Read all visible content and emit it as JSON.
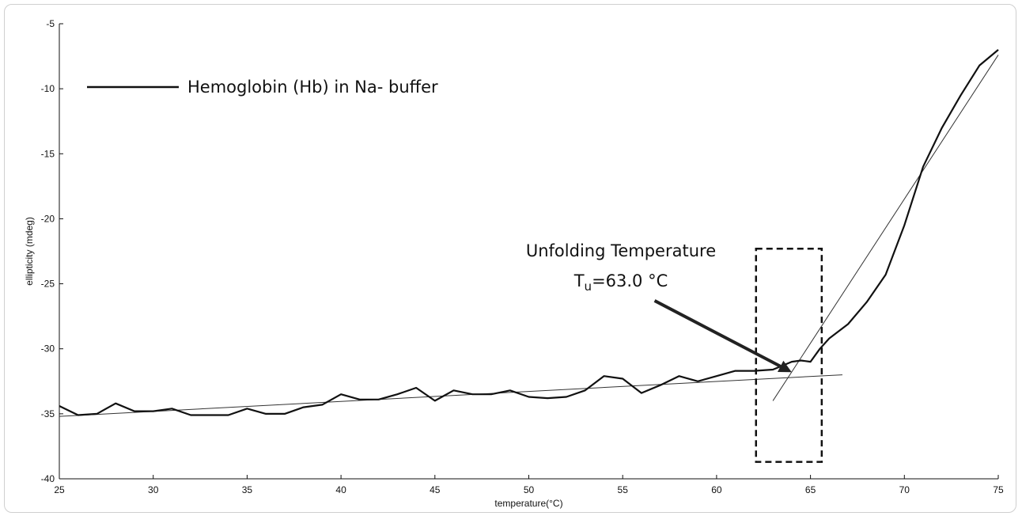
{
  "chart_data": {
    "type": "line",
    "xlabel": "temperature(°C)",
    "ylabel": "ellipticity (mdeg)",
    "xlim": [
      25,
      75
    ],
    "ylim": [
      -40,
      -5
    ],
    "x_ticks": [
      25,
      30,
      35,
      40,
      45,
      50,
      55,
      60,
      65,
      70,
      75
    ],
    "y_ticks": [
      -5,
      -10,
      -15,
      -20,
      -25,
      -30,
      -35,
      -40
    ],
    "grid": false,
    "legend_position": "top-left",
    "series": [
      {
        "name": "Hemoglobin (Hb) in Na- buffer",
        "x": [
          25,
          26,
          27,
          28,
          29,
          30,
          31,
          32,
          33,
          34,
          35,
          36,
          37,
          38,
          39,
          40,
          41,
          42,
          43,
          44,
          45,
          46,
          47,
          48,
          49,
          50,
          51,
          52,
          53,
          54,
          55,
          56,
          57,
          58,
          59,
          60,
          61,
          62,
          63,
          63.5,
          64,
          64.5,
          65,
          65.5,
          66,
          67,
          68,
          69,
          70,
          71,
          72,
          73,
          74,
          75
        ],
        "y": [
          -34.4,
          -35.1,
          -35.0,
          -34.2,
          -34.8,
          -34.8,
          -34.6,
          -35.1,
          -35.1,
          -35.1,
          -34.6,
          -35.0,
          -35.0,
          -34.5,
          -34.3,
          -33.5,
          -33.9,
          -33.9,
          -33.5,
          -33.0,
          -34.0,
          -33.2,
          -33.5,
          -33.5,
          -33.2,
          -33.7,
          -33.8,
          -33.7,
          -33.2,
          -32.1,
          -32.3,
          -33.4,
          -32.8,
          -32.1,
          -32.5,
          -32.1,
          -31.7,
          -31.7,
          -31.6,
          -31.3,
          -31.0,
          -30.9,
          -31.0,
          -30.0,
          -29.2,
          -28.1,
          -26.4,
          -24.3,
          -20.5,
          -16.0,
          -13.0,
          -10.5,
          -8.2,
          -7.0
        ]
      }
    ],
    "fit_lines": [
      {
        "x": [
          25,
          66.7
        ],
        "y": [
          -35.2,
          -32.0
        ]
      },
      {
        "x": [
          63,
          75
        ],
        "y": [
          -34.0,
          -7.4
        ]
      }
    ],
    "annotations": {
      "label_line1": "Unfolding Temperature",
      "label_line2_T": "T",
      "label_line2_sub": "u",
      "label_line2_rest": "=63.0 °C",
      "box_x": [
        62.1,
        65.6
      ],
      "box_y": [
        -22.3,
        -38.7
      ],
      "arrow_from": [
        56.7,
        -26.3
      ],
      "arrow_to": [
        64.0,
        -31.8
      ]
    }
  }
}
